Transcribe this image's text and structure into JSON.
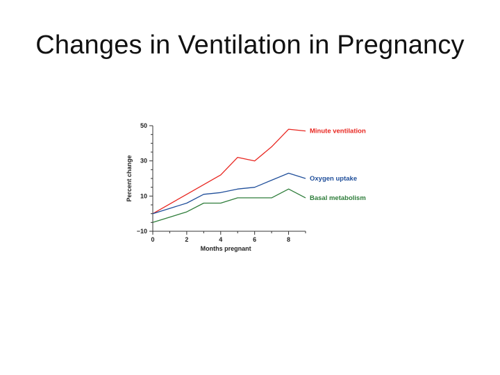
{
  "slide": {
    "title": "Changes in Ventilation in Pregnancy"
  },
  "chart_data": {
    "type": "line",
    "xlabel": "Months pregnant",
    "ylabel": "Percent change",
    "xlim": [
      0,
      9
    ],
    "ylim": [
      -10,
      50
    ],
    "x_ticks": [
      0,
      2,
      4,
      6,
      8
    ],
    "y_ticks": [
      -10,
      10,
      30,
      50
    ],
    "grid": false,
    "legend": "inline labels at line ends (right)",
    "series": [
      {
        "name": "Minute ventilation",
        "color": "#e8251f",
        "x": [
          0,
          2,
          4,
          5,
          6,
          7,
          8,
          9
        ],
        "y": [
          0,
          11,
          22,
          32,
          30,
          38,
          48,
          47
        ]
      },
      {
        "name": "Oxygen uptake",
        "color": "#1f4e9a",
        "x": [
          0,
          2,
          3,
          4,
          5,
          6,
          7,
          8,
          9
        ],
        "y": [
          0,
          6,
          11,
          12,
          14,
          15,
          19,
          23,
          20
        ]
      },
      {
        "name": "Basal metabolism",
        "color": "#2e7d3a",
        "x": [
          0,
          2,
          3,
          4,
          5,
          6,
          7,
          8,
          9
        ],
        "y": [
          -5,
          1,
          6,
          6,
          9,
          9,
          9,
          14,
          9
        ]
      }
    ]
  }
}
